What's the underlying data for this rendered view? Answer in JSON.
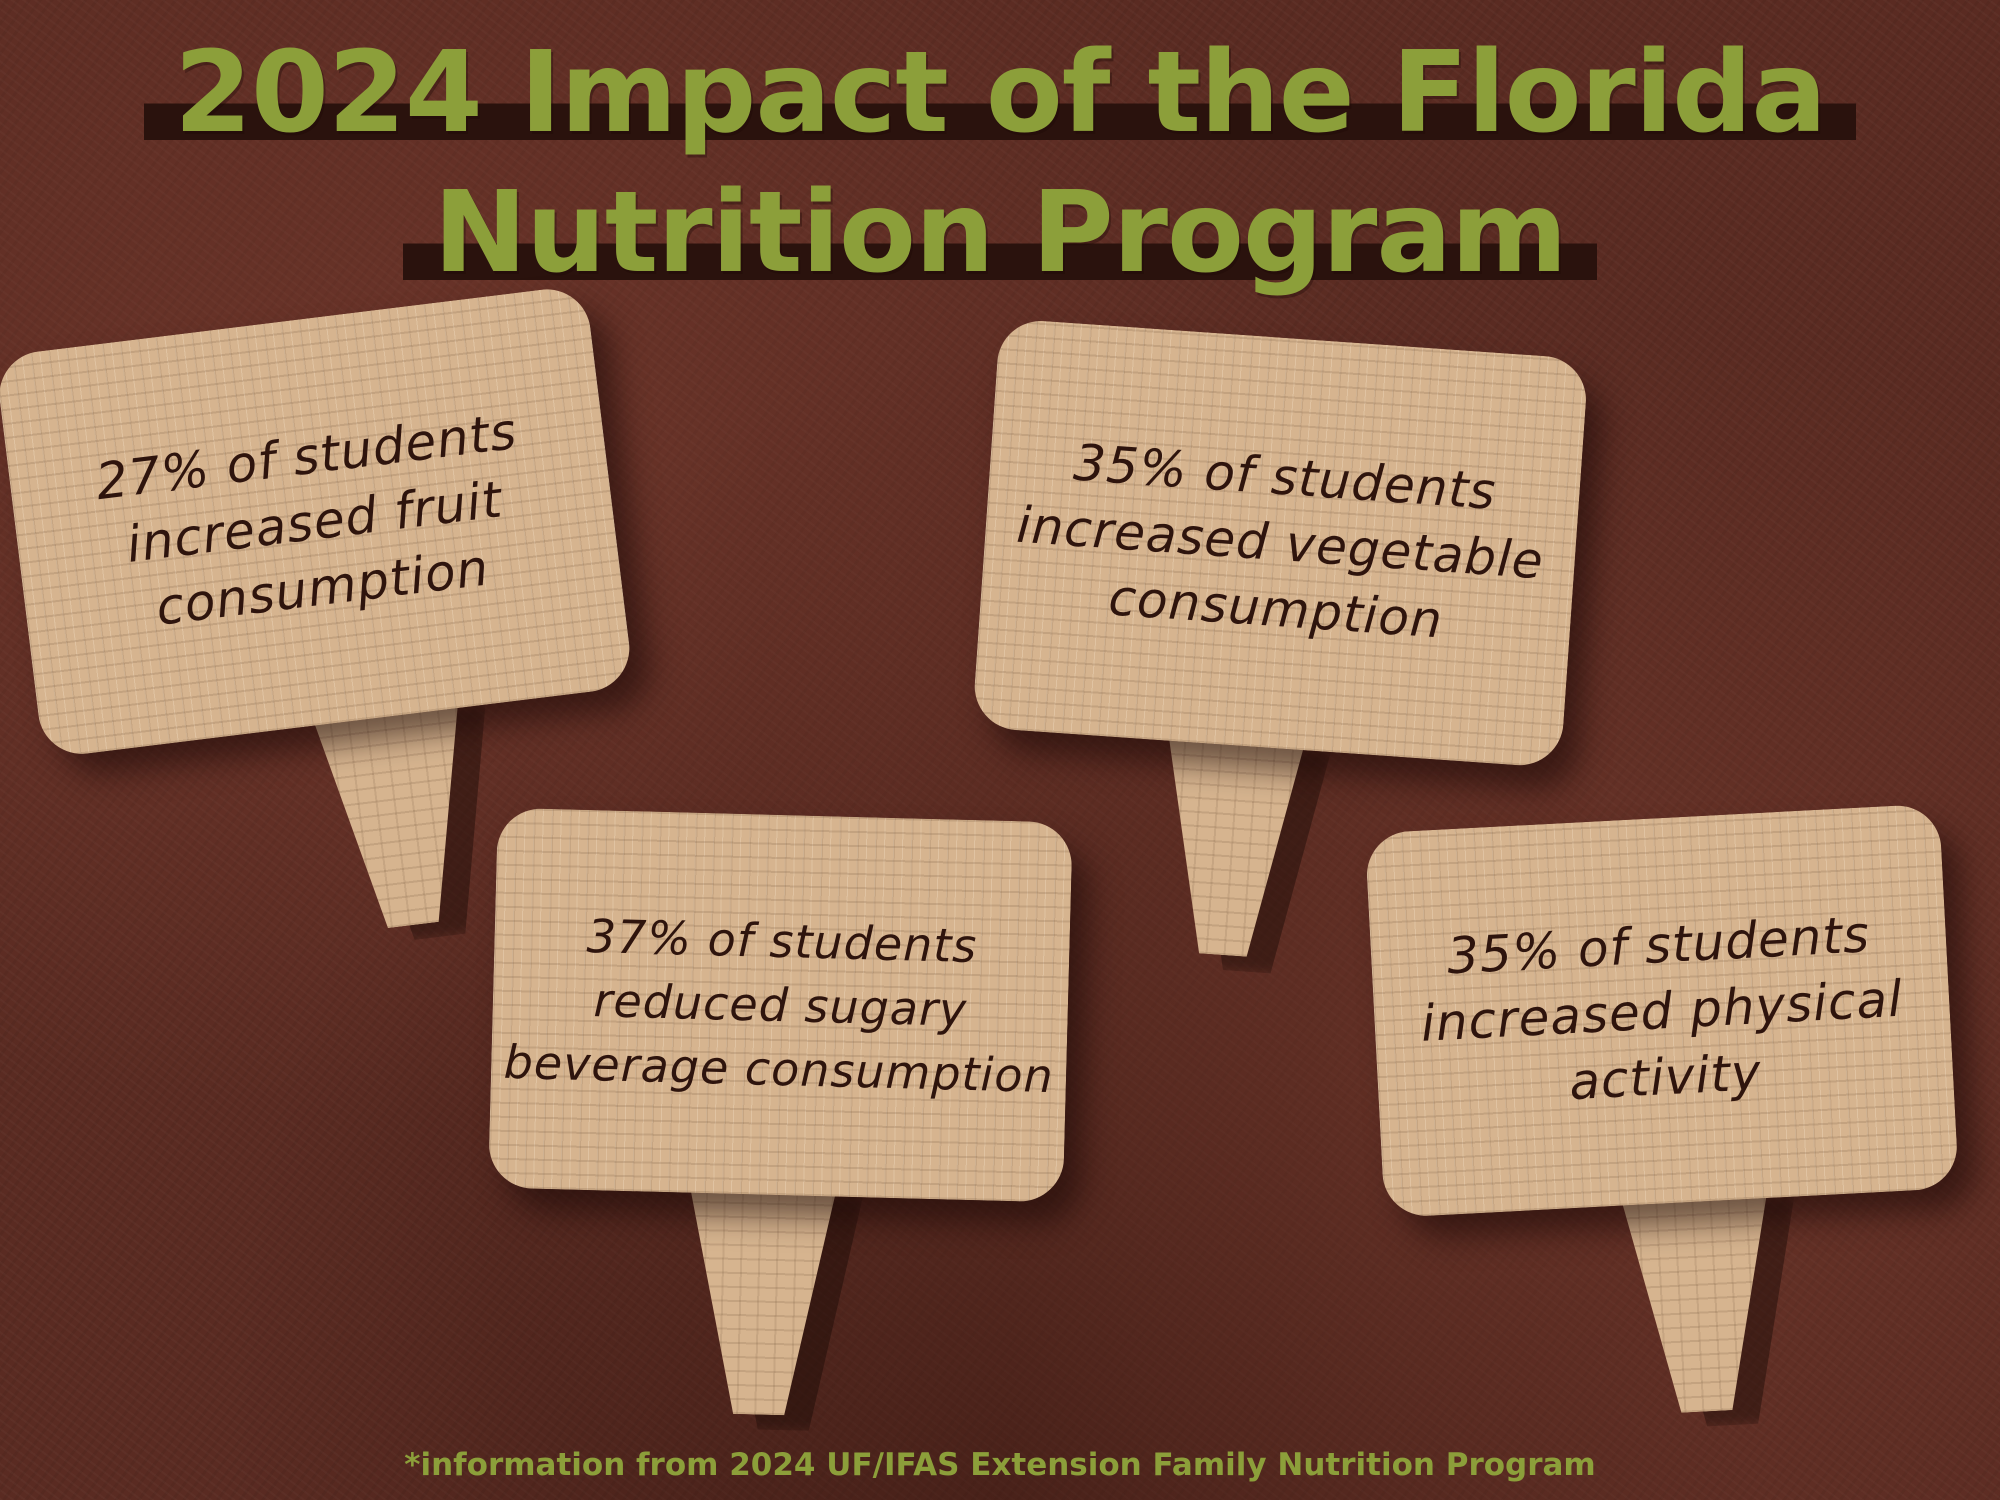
{
  "title": {
    "line1": "2024 Impact of the Florida",
    "line2": "Nutrition Program"
  },
  "signs": [
    {
      "lines": [
        "27% of students",
        "increased fruit",
        "consumption"
      ]
    },
    {
      "lines": [
        "35% of students",
        "increased vegetable",
        "consumption"
      ]
    },
    {
      "lines": [
        "37% of students",
        "reduced sugary",
        "beverage consumption"
      ]
    },
    {
      "lines": [
        "35% of students",
        "increased physical",
        "activity"
      ]
    }
  ],
  "footnote": "*information from 2024 UF/IFAS Extension Family Nutrition Program",
  "colors": {
    "background": "#5a2b22",
    "title_text": "#8c9f3a",
    "title_band": "#2a120d",
    "sign_face": "#d6b48f",
    "sign_text": "#2e140d"
  }
}
